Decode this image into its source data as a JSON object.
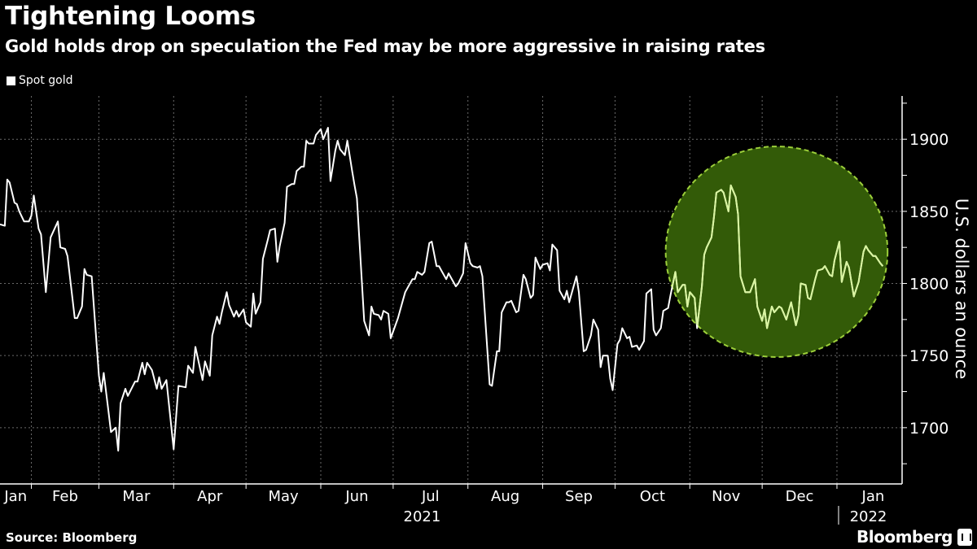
{
  "header": {
    "title": "Tightening Looms",
    "subtitle": "Gold holds drop on speculation the Fed may be more aggressive in raising rates"
  },
  "footer": {
    "source": "Source: Bloomberg",
    "brand": "Bloomberg"
  },
  "colors": {
    "background": "#000000",
    "line": "#ffffff",
    "highlight_fill": "#335b08",
    "highlight_stroke": "#9ccf3a",
    "highlight_line": "#d9f5a0",
    "grid": "#6a6a6a"
  },
  "chart_data": {
    "type": "line",
    "title": "Tightening Looms",
    "subtitle": "Gold holds drop on speculation the Fed may be more aggressive in raising rates",
    "xlabel": "",
    "ylabel": "U.S. dollars an ounce",
    "x_unit": "days since Jan 19, 2021",
    "xlim": [
      0,
      373
    ],
    "ylim": [
      1661,
      1930
    ],
    "yticks": [
      1700,
      1750,
      1800,
      1850,
      1900
    ],
    "ytick_labels": [
      "1700",
      "1750",
      "1800",
      "1850",
      "1900"
    ],
    "month_boundaries": [
      13,
      41,
      72,
      102,
      133,
      163,
      194,
      225,
      255,
      286,
      316,
      347
    ],
    "month_labels": [
      "Jan",
      "Feb",
      "Mar",
      "Apr",
      "May",
      "Jun",
      "Jul",
      "Aug",
      "Sep",
      "Oct",
      "Nov",
      "Dec",
      "Jan"
    ],
    "year_labels": [
      {
        "label": "2021",
        "at_day": 175
      },
      {
        "label": "2022",
        "at_day": 360
      }
    ],
    "grid": true,
    "legend": {
      "position": "top-left",
      "entries": [
        "Spot gold"
      ]
    },
    "highlight": {
      "shape": "ellipse",
      "center_day": 322,
      "center_value": 1822,
      "day_radius": 46,
      "value_radius": 73
    },
    "series": [
      {
        "name": "Spot gold",
        "points": [
          [
            0,
            1841
          ],
          [
            2,
            1840
          ],
          [
            3,
            1872
          ],
          [
            4,
            1870
          ],
          [
            6,
            1856
          ],
          [
            7,
            1855
          ],
          [
            8,
            1850
          ],
          [
            10,
            1843
          ],
          [
            12,
            1843
          ],
          [
            13,
            1847
          ],
          [
            14,
            1861
          ],
          [
            16,
            1838
          ],
          [
            17,
            1834
          ],
          [
            19,
            1794
          ],
          [
            21,
            1832
          ],
          [
            24,
            1843
          ],
          [
            25,
            1825
          ],
          [
            27,
            1824
          ],
          [
            28,
            1819
          ],
          [
            31,
            1776
          ],
          [
            32,
            1776
          ],
          [
            34,
            1784
          ],
          [
            35,
            1810
          ],
          [
            36,
            1806
          ],
          [
            38,
            1805
          ],
          [
            41,
            1736
          ],
          [
            42,
            1725
          ],
          [
            43,
            1738
          ],
          [
            45,
            1711
          ],
          [
            46,
            1697
          ],
          [
            48,
            1700
          ],
          [
            49,
            1684
          ],
          [
            50,
            1717
          ],
          [
            52,
            1727
          ],
          [
            53,
            1722
          ],
          [
            56,
            1732
          ],
          [
            57,
            1732
          ],
          [
            59,
            1745
          ],
          [
            60,
            1737
          ],
          [
            61,
            1745
          ],
          [
            63,
            1740
          ],
          [
            65,
            1727
          ],
          [
            66,
            1735
          ],
          [
            67,
            1727
          ],
          [
            69,
            1733
          ],
          [
            72,
            1685
          ],
          [
            74,
            1729
          ],
          [
            77,
            1728
          ],
          [
            78,
            1743
          ],
          [
            80,
            1738
          ],
          [
            81,
            1756
          ],
          [
            84,
            1733
          ],
          [
            85,
            1746
          ],
          [
            87,
            1736
          ],
          [
            88,
            1764
          ],
          [
            90,
            1777
          ],
          [
            91,
            1772
          ],
          [
            92,
            1780
          ],
          [
            94,
            1794
          ],
          [
            95,
            1785
          ],
          [
            97,
            1777
          ],
          [
            98,
            1781
          ],
          [
            99,
            1777
          ],
          [
            101,
            1782
          ],
          [
            102,
            1773
          ],
          [
            104,
            1770
          ],
          [
            105,
            1793
          ],
          [
            106,
            1779
          ],
          [
            108,
            1787
          ],
          [
            109,
            1817
          ],
          [
            111,
            1830
          ],
          [
            112,
            1837
          ],
          [
            114,
            1838
          ],
          [
            115,
            1815
          ],
          [
            116,
            1826
          ],
          [
            118,
            1842
          ],
          [
            119,
            1867
          ],
          [
            121,
            1869
          ],
          [
            122,
            1869
          ],
          [
            123,
            1878
          ],
          [
            125,
            1881
          ],
          [
            126,
            1881
          ],
          [
            127,
            1899
          ],
          [
            128,
            1897
          ],
          [
            130,
            1897
          ],
          [
            131,
            1903
          ],
          [
            133,
            1907
          ],
          [
            134,
            1900
          ],
          [
            136,
            1908
          ],
          [
            137,
            1871
          ],
          [
            139,
            1892
          ],
          [
            140,
            1899
          ],
          [
            141,
            1893
          ],
          [
            143,
            1889
          ],
          [
            144,
            1899
          ],
          [
            146,
            1878
          ],
          [
            147,
            1868
          ],
          [
            148,
            1859
          ],
          [
            151,
            1774
          ],
          [
            153,
            1764
          ],
          [
            154,
            1784
          ],
          [
            155,
            1779
          ],
          [
            157,
            1778
          ],
          [
            158,
            1775
          ],
          [
            159,
            1781
          ],
          [
            161,
            1779
          ],
          [
            162,
            1762
          ],
          [
            165,
            1776
          ],
          [
            167,
            1788
          ],
          [
            168,
            1794
          ],
          [
            171,
            1803
          ],
          [
            172,
            1803
          ],
          [
            173,
            1808
          ],
          [
            175,
            1806
          ],
          [
            176,
            1808
          ],
          [
            178,
            1828
          ],
          [
            179,
            1829
          ],
          [
            181,
            1812
          ],
          [
            182,
            1812
          ],
          [
            183,
            1809
          ],
          [
            185,
            1803
          ],
          [
            186,
            1807
          ],
          [
            189,
            1798
          ],
          [
            190,
            1800
          ],
          [
            192,
            1807
          ],
          [
            193,
            1828
          ],
          [
            195,
            1814
          ],
          [
            196,
            1812
          ],
          [
            198,
            1811
          ],
          [
            199,
            1812
          ],
          [
            200,
            1805
          ],
          [
            203,
            1730
          ],
          [
            204,
            1729
          ],
          [
            206,
            1753
          ],
          [
            207,
            1753
          ],
          [
            208,
            1780
          ],
          [
            210,
            1787
          ],
          [
            211,
            1787
          ],
          [
            212,
            1788
          ],
          [
            214,
            1780
          ],
          [
            215,
            1781
          ],
          [
            217,
            1806
          ],
          [
            218,
            1803
          ],
          [
            220,
            1790
          ],
          [
            221,
            1792
          ],
          [
            222,
            1818
          ],
          [
            224,
            1810
          ],
          [
            225,
            1813
          ],
          [
            227,
            1814
          ],
          [
            228,
            1809
          ],
          [
            229,
            1827
          ],
          [
            231,
            1823
          ],
          [
            232,
            1795
          ],
          [
            234,
            1789
          ],
          [
            235,
            1795
          ],
          [
            236,
            1787
          ],
          [
            239,
            1805
          ],
          [
            240,
            1794
          ],
          [
            242,
            1753
          ],
          [
            243,
            1754
          ],
          [
            245,
            1764
          ],
          [
            246,
            1775
          ],
          [
            248,
            1768
          ],
          [
            249,
            1742
          ],
          [
            250,
            1750
          ],
          [
            252,
            1750
          ],
          [
            253,
            1734
          ],
          [
            254,
            1726
          ],
          [
            256,
            1758
          ],
          [
            257,
            1761
          ],
          [
            258,
            1769
          ],
          [
            260,
            1762
          ],
          [
            261,
            1763
          ],
          [
            262,
            1756
          ],
          [
            264,
            1757
          ],
          [
            265,
            1754
          ],
          [
            267,
            1760
          ],
          [
            268,
            1793
          ],
          [
            270,
            1796
          ],
          [
            271,
            1768
          ],
          [
            272,
            1764
          ],
          [
            274,
            1769
          ],
          [
            275,
            1781
          ],
          [
            277,
            1783
          ],
          [
            278,
            1792
          ],
          [
            280,
            1808
          ],
          [
            281,
            1794
          ],
          [
            283,
            1799
          ],
          [
            284,
            1799
          ],
          [
            285,
            1784
          ],
          [
            286,
            1794
          ],
          [
            288,
            1790
          ],
          [
            289,
            1769
          ],
          [
            291,
            1798
          ],
          [
            292,
            1820
          ],
          [
            293,
            1825
          ],
          [
            295,
            1832
          ],
          [
            296,
            1846
          ],
          [
            297,
            1863
          ],
          [
            299,
            1865
          ],
          [
            300,
            1863
          ],
          [
            302,
            1850
          ],
          [
            303,
            1868
          ],
          [
            305,
            1860
          ],
          [
            306,
            1848
          ],
          [
            307,
            1805
          ],
          [
            309,
            1794
          ],
          [
            311,
            1794
          ],
          [
            313,
            1803
          ],
          [
            314,
            1784
          ],
          [
            316,
            1774
          ],
          [
            317,
            1782
          ],
          [
            318,
            1769
          ],
          [
            320,
            1784
          ],
          [
            321,
            1780
          ],
          [
            323,
            1784
          ],
          [
            324,
            1783
          ],
          [
            326,
            1775
          ],
          [
            328,
            1787
          ],
          [
            330,
            1771
          ],
          [
            331,
            1778
          ],
          [
            332,
            1800
          ],
          [
            334,
            1799
          ],
          [
            335,
            1790
          ],
          [
            336,
            1789
          ],
          [
            338,
            1803
          ],
          [
            339,
            1809
          ],
          [
            341,
            1810
          ],
          [
            342,
            1812
          ],
          [
            344,
            1806
          ],
          [
            345,
            1805
          ],
          [
            346,
            1816
          ],
          [
            348,
            1829
          ],
          [
            349,
            1801
          ],
          [
            351,
            1815
          ],
          [
            352,
            1811
          ],
          [
            354,
            1791
          ],
          [
            356,
            1801
          ],
          [
            358,
            1822
          ],
          [
            359,
            1826
          ],
          [
            360,
            1823
          ],
          [
            362,
            1819
          ],
          [
            363,
            1819
          ],
          [
            365,
            1814
          ],
          [
            366,
            1812
          ]
        ]
      }
    ]
  }
}
